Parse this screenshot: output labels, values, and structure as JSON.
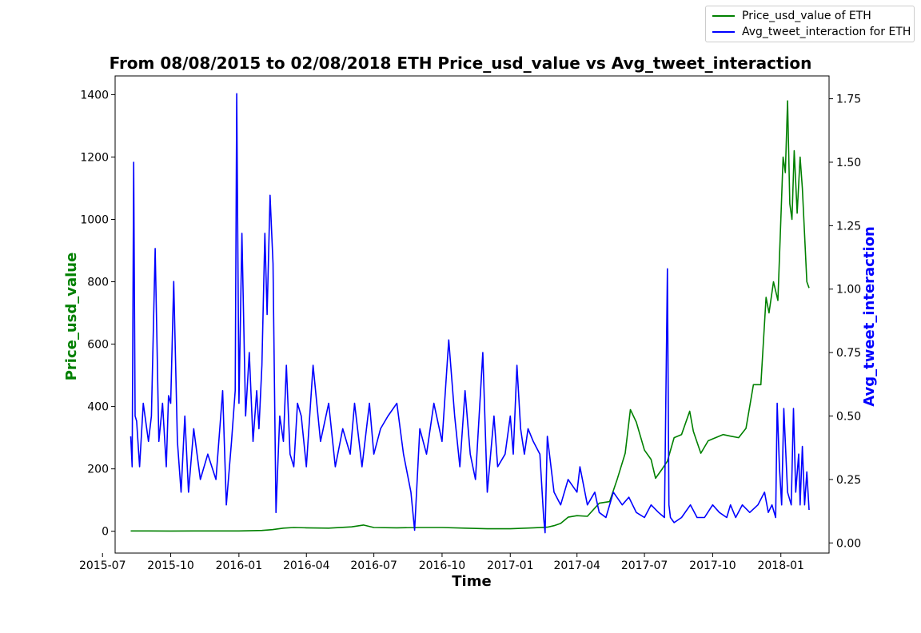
{
  "chart_data": {
    "type": "line",
    "title": "From 08/08/2015 to 02/08/2018 ETH Price_usd_value vs Avg_tweet_interaction",
    "xlabel": "Time",
    "x_range": [
      "2015-07-18",
      "2018-03-07"
    ],
    "x_ticks": [
      "2015-07-01",
      "2015-10-01",
      "2016-01-01",
      "2016-04-01",
      "2016-07-01",
      "2016-10-01",
      "2017-01-01",
      "2017-04-01",
      "2017-07-01",
      "2017-10-01",
      "2018-01-01"
    ],
    "x_tick_labels": [
      "2015-07",
      "2015-10",
      "2016-01",
      "2016-04",
      "2016-07",
      "2016-10",
      "2017-01",
      "2017-04",
      "2017-07",
      "2017-10",
      "2018-01"
    ],
    "left_axis": {
      "label": "Price_usd_value",
      "color": "#008000",
      "ylim": [
        -70,
        1460
      ],
      "ticks": [
        0,
        200,
        400,
        600,
        800,
        1000,
        1200,
        1400
      ],
      "tick_labels": [
        "0",
        "200",
        "400",
        "600",
        "800",
        "1000",
        "1200",
        "1400"
      ]
    },
    "right_axis": {
      "label": "Avg_tweet_interaction",
      "color": "#0000ff",
      "ylim": [
        -0.04,
        1.84
      ],
      "ticks": [
        0.0,
        0.25,
        0.5,
        0.75,
        1.0,
        1.25,
        1.5,
        1.75
      ],
      "tick_labels": [
        "0.00",
        "0.25",
        "0.50",
        "0.75",
        "1.00",
        "1.25",
        "1.50",
        "1.75"
      ]
    },
    "legend_position": "top-right (outside plot area)",
    "grid": false,
    "series": [
      {
        "name": "Price_usd_value of ETH",
        "axis": "left",
        "color": "#008000",
        "x": [
          "2015-08-08",
          "2015-09-01",
          "2015-10-01",
          "2015-11-01",
          "2015-12-01",
          "2016-01-01",
          "2016-02-01",
          "2016-02-15",
          "2016-03-01",
          "2016-03-15",
          "2016-04-01",
          "2016-05-01",
          "2016-06-01",
          "2016-06-17",
          "2016-07-01",
          "2016-08-01",
          "2016-09-01",
          "2016-10-01",
          "2016-11-01",
          "2016-12-01",
          "2017-01-01",
          "2017-02-01",
          "2017-02-20",
          "2017-03-01",
          "2017-03-10",
          "2017-03-20",
          "2017-04-01",
          "2017-04-15",
          "2017-05-01",
          "2017-05-15",
          "2017-05-25",
          "2017-06-05",
          "2017-06-12",
          "2017-06-20",
          "2017-07-01",
          "2017-07-10",
          "2017-07-16",
          "2017-07-25",
          "2017-08-01",
          "2017-08-10",
          "2017-08-20",
          "2017-08-31",
          "2017-09-05",
          "2017-09-15",
          "2017-09-25",
          "2017-10-05",
          "2017-10-15",
          "2017-10-25",
          "2017-11-05",
          "2017-11-15",
          "2017-11-25",
          "2017-11-29",
          "2017-12-05",
          "2017-12-12",
          "2017-12-16",
          "2017-12-22",
          "2017-12-28",
          "2018-01-01",
          "2018-01-04",
          "2018-01-07",
          "2018-01-10",
          "2018-01-13",
          "2018-01-16",
          "2018-01-19",
          "2018-01-23",
          "2018-01-27",
          "2018-01-30",
          "2018-02-02",
          "2018-02-05",
          "2018-02-08"
        ],
        "values": [
          1,
          1,
          0.7,
          0.9,
          0.9,
          1,
          2.5,
          5,
          10,
          12,
          11,
          10,
          14,
          20,
          12,
          11,
          12,
          12,
          10,
          8,
          8,
          11,
          13,
          18,
          25,
          45,
          50,
          48,
          90,
          95,
          165,
          250,
          390,
          350,
          260,
          230,
          170,
          200,
          225,
          300,
          310,
          385,
          320,
          250,
          290,
          300,
          310,
          305,
          300,
          330,
          470,
          470,
          470,
          750,
          700,
          800,
          740,
          1000,
          1200,
          1150,
          1380,
          1050,
          1000,
          1220,
          1020,
          1200,
          1100,
          950,
          800,
          780
        ]
      },
      {
        "name": "Avg_tweet_interaction for ETH",
        "axis": "right",
        "color": "#0000ff",
        "x": [
          "2015-08-08",
          "2015-08-10",
          "2015-08-12",
          "2015-08-14",
          "2015-08-16",
          "2015-08-20",
          "2015-08-25",
          "2015-09-01",
          "2015-09-05",
          "2015-09-10",
          "2015-09-15",
          "2015-09-20",
          "2015-09-25",
          "2015-09-28",
          "2015-10-01",
          "2015-10-05",
          "2015-10-10",
          "2015-10-15",
          "2015-10-20",
          "2015-10-25",
          "2015-11-01",
          "2015-11-10",
          "2015-11-20",
          "2015-12-01",
          "2015-12-10",
          "2015-12-15",
          "2015-12-22",
          "2015-12-27",
          "2015-12-29",
          "2016-01-01",
          "2016-01-05",
          "2016-01-10",
          "2016-01-15",
          "2016-01-20",
          "2016-01-25",
          "2016-01-28",
          "2016-02-01",
          "2016-02-05",
          "2016-02-08",
          "2016-02-12",
          "2016-02-16",
          "2016-02-20",
          "2016-02-25",
          "2016-03-01",
          "2016-03-05",
          "2016-03-10",
          "2016-03-15",
          "2016-03-20",
          "2016-03-25",
          "2016-04-01",
          "2016-04-10",
          "2016-04-20",
          "2016-05-01",
          "2016-05-10",
          "2016-05-20",
          "2016-05-30",
          "2016-06-05",
          "2016-06-15",
          "2016-06-25",
          "2016-07-01",
          "2016-07-10",
          "2016-07-20",
          "2016-08-01",
          "2016-08-10",
          "2016-08-20",
          "2016-08-25",
          "2016-09-01",
          "2016-09-10",
          "2016-09-20",
          "2016-10-01",
          "2016-10-10",
          "2016-10-18",
          "2016-10-25",
          "2016-11-01",
          "2016-11-08",
          "2016-11-15",
          "2016-11-25",
          "2016-12-01",
          "2016-12-10",
          "2016-12-15",
          "2016-12-25",
          "2017-01-01",
          "2017-01-05",
          "2017-01-10",
          "2017-01-15",
          "2017-01-20",
          "2017-01-25",
          "2017-02-01",
          "2017-02-10",
          "2017-02-15",
          "2017-02-17",
          "2017-02-20",
          "2017-03-01",
          "2017-03-10",
          "2017-03-20",
          "2017-04-01",
          "2017-04-05",
          "2017-04-15",
          "2017-04-25",
          "2017-05-01",
          "2017-05-10",
          "2017-05-20",
          "2017-06-01",
          "2017-06-10",
          "2017-06-20",
          "2017-07-01",
          "2017-07-10",
          "2017-07-20",
          "2017-07-28",
          "2017-08-01",
          "2017-08-03",
          "2017-08-05",
          "2017-08-10",
          "2017-08-20",
          "2017-09-01",
          "2017-09-10",
          "2017-09-20",
          "2017-10-01",
          "2017-10-10",
          "2017-10-20",
          "2017-10-25",
          "2017-11-01",
          "2017-11-10",
          "2017-11-20",
          "2017-12-01",
          "2017-12-10",
          "2017-12-15",
          "2017-12-20",
          "2017-12-25",
          "2017-12-27",
          "2017-12-30",
          "2018-01-02",
          "2018-01-05",
          "2018-01-10",
          "2018-01-15",
          "2018-01-18",
          "2018-01-21",
          "2018-01-25",
          "2018-01-27",
          "2018-01-30",
          "2018-02-02",
          "2018-02-05",
          "2018-02-08"
        ],
        "values": [
          0.42,
          0.3,
          1.5,
          0.5,
          0.48,
          0.3,
          0.55,
          0.4,
          0.5,
          1.16,
          0.4,
          0.55,
          0.3,
          0.58,
          0.55,
          1.03,
          0.4,
          0.2,
          0.5,
          0.2,
          0.45,
          0.25,
          0.35,
          0.25,
          0.6,
          0.15,
          0.4,
          0.6,
          1.77,
          0.55,
          1.22,
          0.5,
          0.75,
          0.4,
          0.6,
          0.45,
          0.7,
          1.22,
          0.9,
          1.37,
          1.1,
          0.12,
          0.5,
          0.4,
          0.7,
          0.35,
          0.3,
          0.55,
          0.5,
          0.3,
          0.7,
          0.4,
          0.55,
          0.3,
          0.45,
          0.35,
          0.55,
          0.3,
          0.55,
          0.35,
          0.45,
          0.5,
          0.55,
          0.35,
          0.2,
          0.05,
          0.45,
          0.35,
          0.55,
          0.4,
          0.8,
          0.5,
          0.3,
          0.6,
          0.35,
          0.25,
          0.75,
          0.2,
          0.5,
          0.3,
          0.35,
          0.5,
          0.35,
          0.7,
          0.45,
          0.35,
          0.45,
          0.4,
          0.35,
          0.1,
          0.04,
          0.42,
          0.2,
          0.15,
          0.25,
          0.2,
          0.3,
          0.15,
          0.2,
          0.12,
          0.1,
          0.2,
          0.15,
          0.18,
          0.12,
          0.1,
          0.15,
          0.12,
          0.1,
          1.08,
          0.15,
          0.1,
          0.08,
          0.1,
          0.15,
          0.1,
          0.1,
          0.15,
          0.12,
          0.1,
          0.15,
          0.1,
          0.15,
          0.12,
          0.15,
          0.2,
          0.12,
          0.15,
          0.1,
          0.55,
          0.3,
          0.15,
          0.53,
          0.2,
          0.15,
          0.53,
          0.2,
          0.35,
          0.15,
          0.38,
          0.15,
          0.28,
          0.13
        ]
      }
    ]
  }
}
